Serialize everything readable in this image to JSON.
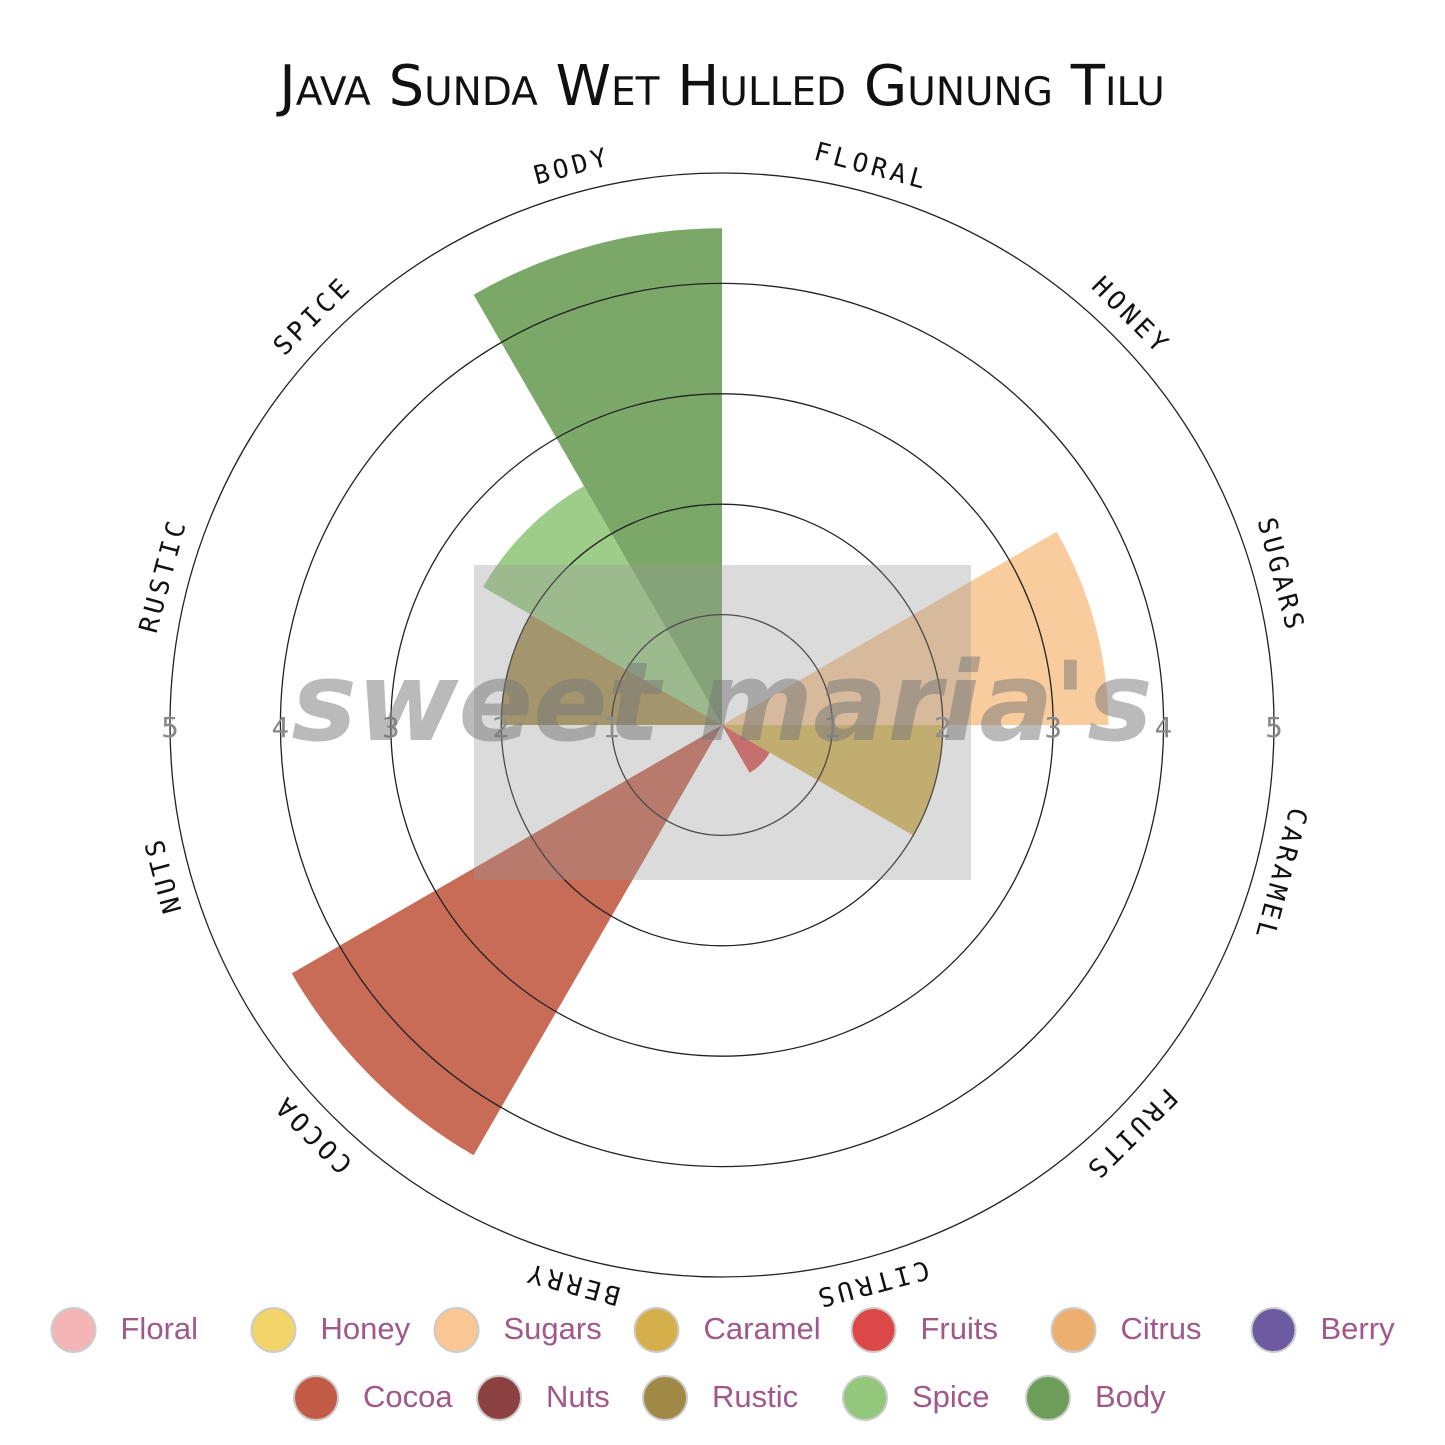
{
  "chart_data": {
    "type": "polar_area",
    "title": "Java Sunda Wet Hulled Gunung Tilu",
    "categories": [
      "Floral",
      "Honey",
      "Sugars",
      "Caramel",
      "Fruits",
      "Citrus",
      "Berry",
      "Cocoa",
      "Nuts",
      "Rustic",
      "Spice",
      "Body"
    ],
    "axis_labels": [
      "FLORAL",
      "HONEY",
      "SUGARS",
      "CARAMEL",
      "FRUITS",
      "CITRUS",
      "BERRY",
      "COCOA",
      "NUTS",
      "RUSTIC",
      "SPICE",
      "BODY"
    ],
    "values": [
      0,
      0,
      3.5,
      2,
      0.5,
      0,
      0,
      4.5,
      0,
      2,
      2.5,
      4.5
    ],
    "colors": [
      "#f3b5b5",
      "#f2d468",
      "#f8c793",
      "#d5b04a",
      "#dc4747",
      "#ecaf70",
      "#6c5ba1",
      "#c25b45",
      "#8c4141",
      "#a08944",
      "#93c77c",
      "#6d9e59"
    ],
    "ylim": [
      0,
      5
    ],
    "yticks": [
      1,
      2,
      3,
      4,
      5
    ],
    "grid": true,
    "watermark": "sweet maria's"
  }
}
